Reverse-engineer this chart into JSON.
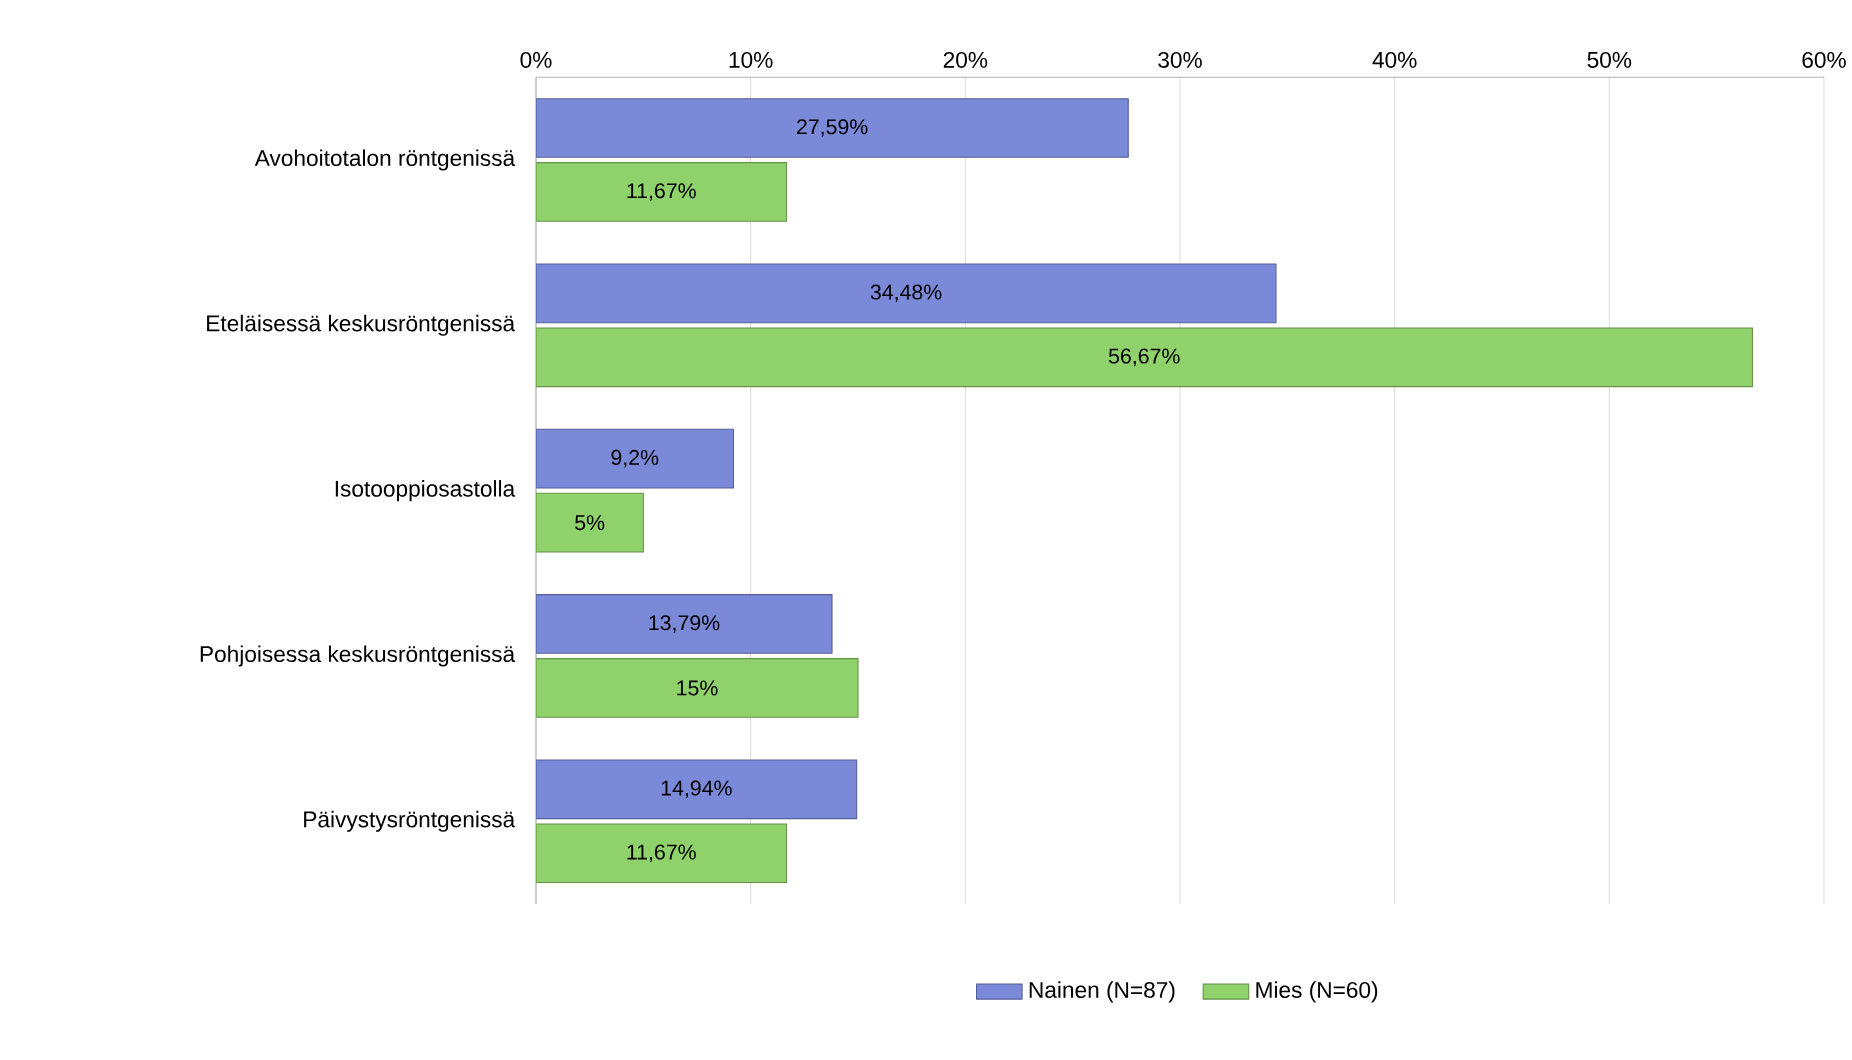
{
  "chart_data": {
    "type": "bar",
    "orientation": "horizontal",
    "categories": [
      "Avohoitotalon röntgenissä",
      "Eteläisessä keskusröntgenissä",
      "Isotooppiosastolla",
      "Pohjoisessa keskusröntgenissä",
      "Päivystysröntgenissä"
    ],
    "series": [
      {
        "name": "Nainen (N=87)",
        "color": "#7b89d9",
        "values": [
          27.59,
          34.48,
          9.2,
          13.79,
          14.94
        ],
        "value_labels": [
          "27,59%",
          "34,48%",
          "9,2%",
          "13,79%",
          "14,94%"
        ]
      },
      {
        "name": "Mies (N=60)",
        "color": "#8fd16a",
        "values": [
          11.67,
          56.67,
          5,
          15,
          11.67
        ],
        "value_labels": [
          "11,67%",
          "56,67%",
          "5%",
          "15%",
          "11,67%"
        ]
      }
    ],
    "xlim": [
      0,
      60
    ],
    "xticks": [
      {
        "value": 0,
        "label": "0%"
      },
      {
        "value": 10,
        "label": "10%"
      },
      {
        "value": 20,
        "label": "20%"
      },
      {
        "value": 30,
        "label": "30%"
      },
      {
        "value": 40,
        "label": "40%"
      },
      {
        "value": 50,
        "label": "50%"
      },
      {
        "value": 60,
        "label": "60%"
      }
    ],
    "grid": "x",
    "legend": "bottom"
  }
}
